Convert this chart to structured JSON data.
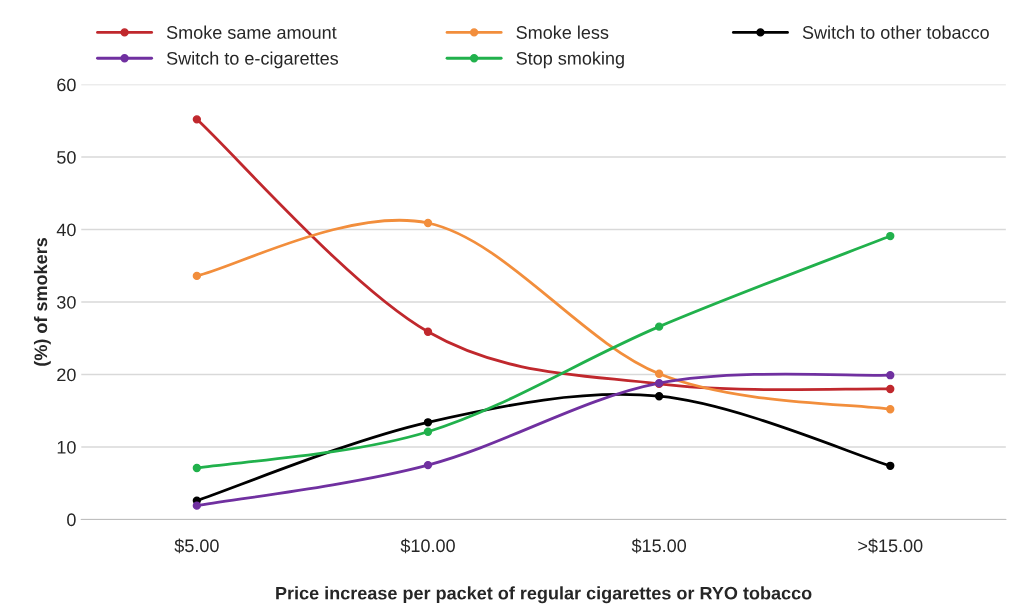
{
  "chart_data": {
    "type": "line",
    "xlabel": "Price increase per packet of regular cigarettes or RYO tobacco",
    "ylabel": "(%) of smokers",
    "categories": [
      "$5.00",
      "$10.00",
      "$15.00",
      ">$15.00"
    ],
    "series": [
      {
        "name": "Smoke same amount",
        "color": "#c0282d",
        "values": [
          55.2,
          25.9,
          18.7,
          18.0
        ]
      },
      {
        "name": "Smoke less",
        "color": "#f28e3c",
        "values": [
          33.6,
          40.9,
          20.1,
          15.2
        ]
      },
      {
        "name": "Switch to other tobacco",
        "color": "#000000",
        "values": [
          2.6,
          13.4,
          17.0,
          7.4
        ]
      },
      {
        "name": "Switch to e-cigarettes",
        "color": "#7030a0",
        "values": [
          1.9,
          7.5,
          18.8,
          19.9
        ]
      },
      {
        "name": "Stop smoking",
        "color": "#21b14c",
        "values": [
          7.1,
          12.1,
          26.6,
          39.1
        ]
      }
    ],
    "ylim": [
      0,
      60
    ],
    "yticks": [
      0,
      10,
      20,
      30,
      40,
      50,
      60
    ],
    "grid": "y",
    "legend": "top",
    "marker": "circle",
    "line_style": "solid"
  }
}
